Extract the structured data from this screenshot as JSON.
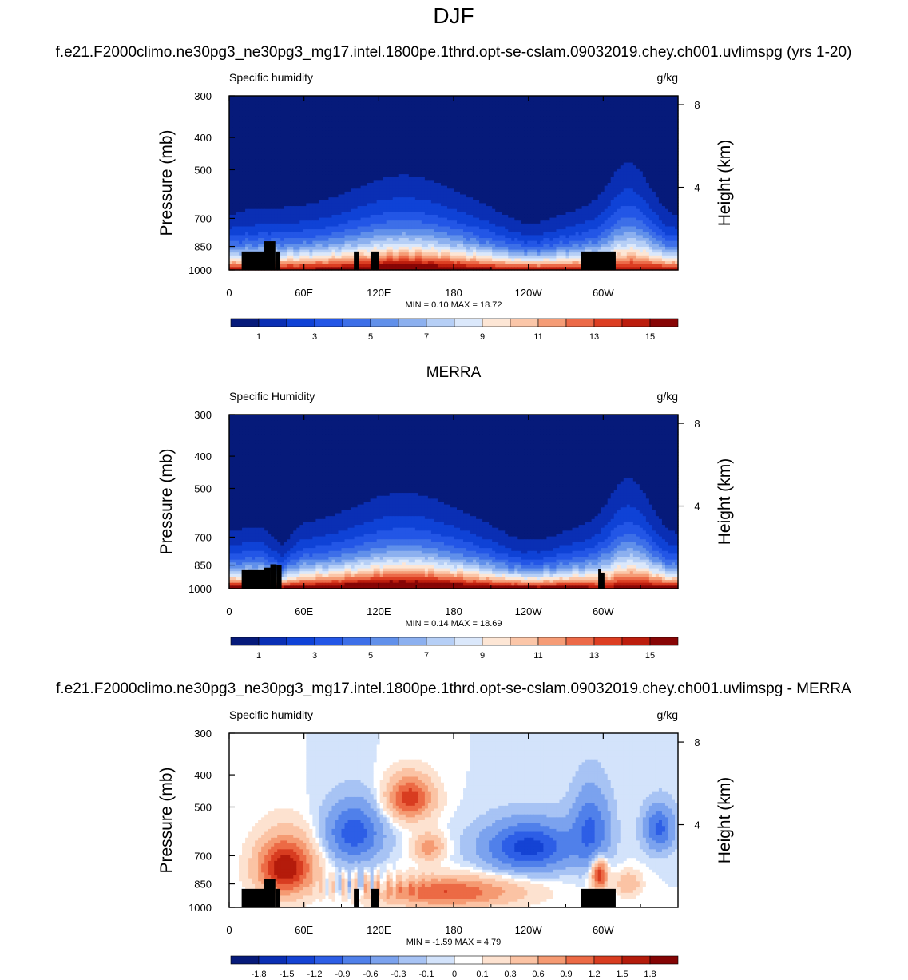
{
  "figure": {
    "title": "DJF",
    "case_name": "f.e21.F2000climo.ne30pg3_ne30pg3_mg17.intel.1800pe.1thrd.opt-se-cslam.09032019.chey.ch001.uvlimspg (yrs 1-20)",
    "diff_title": "f.e21.F2000climo.ne30pg3_ne30pg3_mg17.intel.1800pe.1thrd.opt-se-cslam.09032019.chey.ch001.uvlimspg - MERRA"
  },
  "chart_data": [
    {
      "type": "heatmap",
      "title": "",
      "left_label": "Specific humidity",
      "units": "g/kg",
      "ylabel": "Pressure (mb)",
      "ylabel_right": "Height (km)",
      "y_ticks": [
        "300",
        "400",
        "500",
        "700",
        "850",
        "1000"
      ],
      "y_ticks_values": [
        300,
        400,
        500,
        700,
        850,
        1000
      ],
      "right_ticks": [
        "8",
        "4"
      ],
      "right_ticks_values": [
        8,
        4
      ],
      "x_ticks": [
        "0",
        "60E",
        "120E",
        "180",
        "120W",
        "60W"
      ],
      "x_ticks_values": [
        0,
        60,
        120,
        180,
        240,
        300
      ],
      "xlim": [
        0,
        360
      ],
      "ylim": [
        1000,
        300
      ],
      "minmax": "MIN =   0.10  MAX =  18.72",
      "min": 0.1,
      "max": 18.72,
      "colorbar_labels": [
        "1",
        "3",
        "5",
        "7",
        "9",
        "11",
        "13",
        "15"
      ],
      "colorbar_levels": [
        1,
        2,
        3,
        4,
        5,
        6,
        7,
        8,
        9,
        10,
        11,
        12,
        13,
        14,
        15
      ],
      "colorbar": "abs",
      "field": "model"
    },
    {
      "type": "heatmap",
      "title": "MERRA",
      "left_label": "Specific Humidity",
      "units": "g/kg",
      "ylabel": "Pressure (mb)",
      "ylabel_right": "Height (km)",
      "y_ticks": [
        "300",
        "400",
        "500",
        "700",
        "850",
        "1000"
      ],
      "y_ticks_values": [
        300,
        400,
        500,
        700,
        850,
        1000
      ],
      "right_ticks": [
        "8",
        "4"
      ],
      "right_ticks_values": [
        8,
        4
      ],
      "x_ticks": [
        "0",
        "60E",
        "120E",
        "180",
        "120W",
        "60W"
      ],
      "x_ticks_values": [
        0,
        60,
        120,
        180,
        240,
        300
      ],
      "xlim": [
        0,
        360
      ],
      "ylim": [
        1000,
        300
      ],
      "minmax": "MIN =   0.14  MAX =  18.69",
      "min": 0.14,
      "max": 18.69,
      "colorbar_labels": [
        "1",
        "3",
        "5",
        "7",
        "9",
        "11",
        "13",
        "15"
      ],
      "colorbar_levels": [
        1,
        2,
        3,
        4,
        5,
        6,
        7,
        8,
        9,
        10,
        11,
        12,
        13,
        14,
        15
      ],
      "colorbar": "abs",
      "field": "obs"
    },
    {
      "type": "heatmap",
      "title": "",
      "left_label": "Specific humidity",
      "units": "g/kg",
      "ylabel": "Pressure (mb)",
      "ylabel_right": "Height (km)",
      "y_ticks": [
        "300",
        "400",
        "500",
        "700",
        "850",
        "1000"
      ],
      "y_ticks_values": [
        300,
        400,
        500,
        700,
        850,
        1000
      ],
      "right_ticks": [
        "8",
        "4"
      ],
      "right_ticks_values": [
        8,
        4
      ],
      "x_ticks": [
        "0",
        "60E",
        "120E",
        "180",
        "120W",
        "60W"
      ],
      "x_ticks_values": [
        0,
        60,
        120,
        180,
        240,
        300
      ],
      "xlim": [
        0,
        360
      ],
      "ylim": [
        1000,
        300
      ],
      "minmax": "MIN =  -1.59  MAX =   4.79",
      "min": -1.59,
      "max": 4.79,
      "colorbar_labels": [
        "-1.8",
        "-1.5",
        "-1.2",
        "-0.9",
        "-0.6",
        "-0.3",
        "-0.1",
        "0",
        "0.1",
        "0.3",
        "0.6",
        "0.9",
        "1.2",
        "1.5",
        "1.8"
      ],
      "colorbar_levels": [
        -1.8,
        -1.5,
        -1.2,
        -0.9,
        -0.6,
        -0.3,
        -0.1,
        0,
        0.1,
        0.3,
        0.6,
        0.9,
        1.2,
        1.5,
        1.8
      ],
      "colorbar": "diff",
      "field": "diff"
    }
  ],
  "colors": {
    "abs_palette": [
      "#061a7a",
      "#0a2fb4",
      "#0f42d6",
      "#2356e6",
      "#3d6fe8",
      "#6190ea",
      "#8cb0ef",
      "#b6cff6",
      "#dbe8fb",
      "#fde6d5",
      "#fbc6a8",
      "#f59c76",
      "#ec6a48",
      "#dc3e22",
      "#bc1d0d",
      "#870505"
    ],
    "diff_palette": [
      "#061a7a",
      "#0a2fb4",
      "#1443d4",
      "#2d5ee6",
      "#5080ea",
      "#7ba2ee",
      "#a7c3f4",
      "#d3e3fb",
      "#ffffff",
      "#fde2d0",
      "#fbc3a4",
      "#f59a72",
      "#ec6a45",
      "#d83c20",
      "#b41b0b",
      "#840404"
    ],
    "topography": "#000000"
  }
}
